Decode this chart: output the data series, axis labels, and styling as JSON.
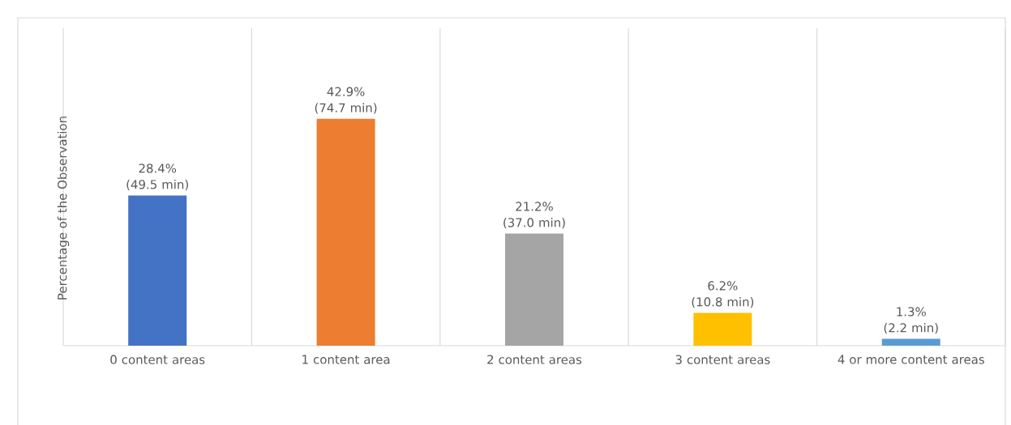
{
  "chart_data": {
    "type": "bar",
    "ylabel": "Percentage of the Observation",
    "categories": [
      "0 content areas",
      "1 content area",
      "2 content areas",
      "3 content areas",
      "4 or more content areas"
    ],
    "values": [
      28.4,
      42.9,
      21.2,
      6.2,
      1.3
    ],
    "colors": [
      "#4472c4",
      "#ed7d31",
      "#a5a5a5",
      "#ffc000",
      "#5b9bd5"
    ],
    "value_labels": [
      "28.4% (49.5 min)",
      "42.9% (74.7 min)",
      "21.2% (37.0 min)",
      "6.2% (10.8 min)",
      "1.3% (2.2 min)"
    ],
    "ylim": [
      0,
      60
    ],
    "grid": "x"
  }
}
